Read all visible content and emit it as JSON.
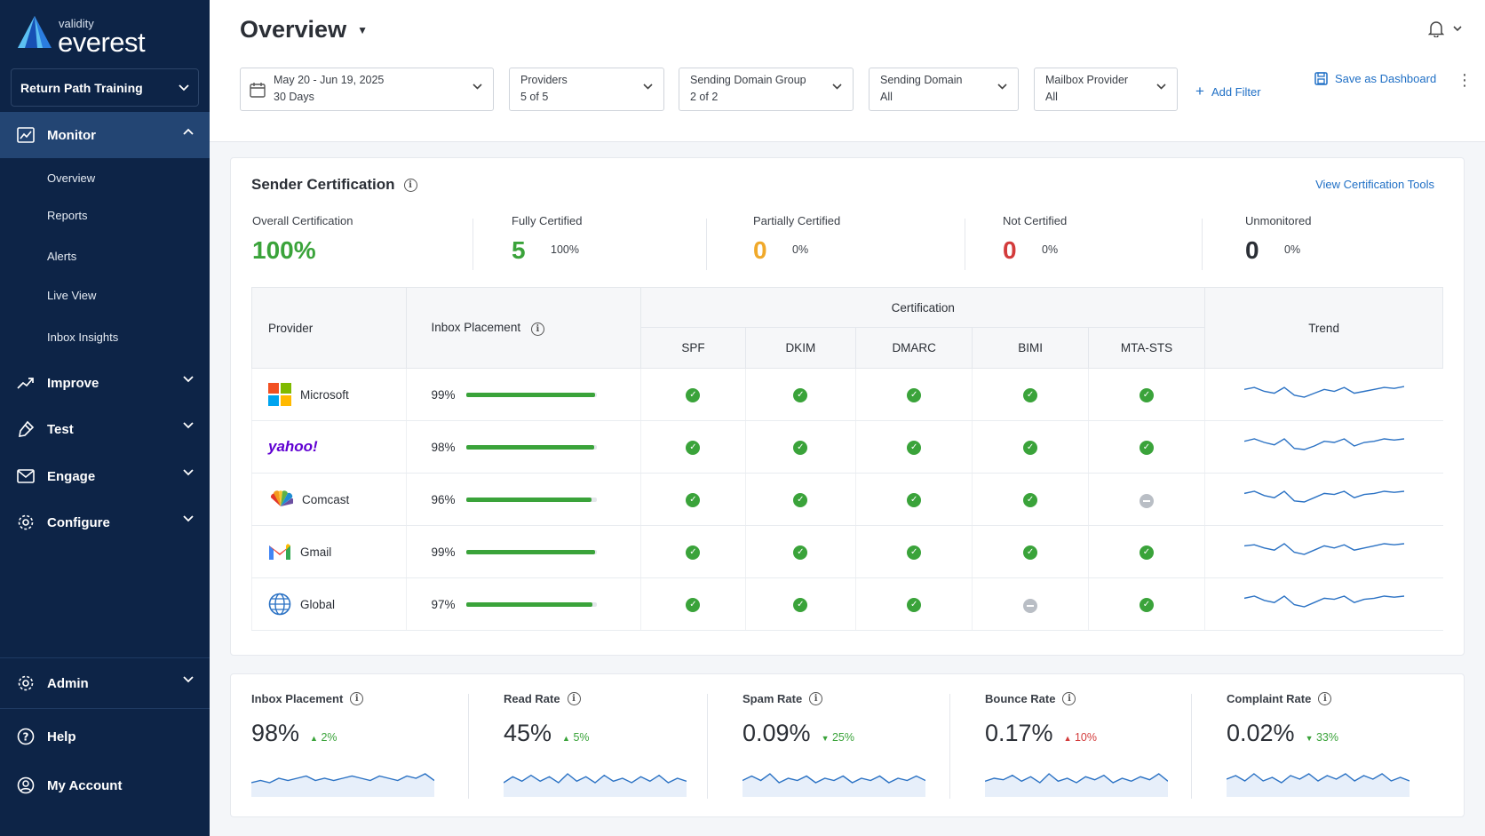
{
  "app": {
    "brand_small": "validity",
    "brand_big": "everest"
  },
  "sidebar": {
    "org": "Return Path Training",
    "monitor": {
      "label": "Monitor",
      "items": [
        "Overview",
        "Reports",
        "Alerts",
        "Live View",
        "Inbox Insights"
      ]
    },
    "groups": [
      "Improve",
      "Test",
      "Engage",
      "Configure"
    ],
    "bottom": [
      "Admin",
      "Help",
      "My Account"
    ]
  },
  "header": {
    "title": "Overview",
    "filters": [
      {
        "line1": "May 20 - Jun 19, 2025",
        "line2": "30 Days"
      },
      {
        "line1": "Providers",
        "line2": "5 of 5"
      },
      {
        "line1": "Sending Domain Group",
        "line2": "2 of 2"
      },
      {
        "line1": "Sending Domain",
        "line2": "All"
      },
      {
        "line1": "Mailbox Provider",
        "line2": "All"
      }
    ],
    "add_filter": "Add Filter",
    "save_dashboard": "Save as Dashboard"
  },
  "certification": {
    "title": "Sender Certification",
    "view_tools": "View Certification Tools",
    "stats": {
      "overall": {
        "label": "Overall Certification",
        "value": "100%"
      },
      "fully": {
        "label": "Fully Certified",
        "value": "5",
        "pct": "100%"
      },
      "partially": {
        "label": "Partially Certified",
        "value": "0",
        "pct": "0%"
      },
      "not": {
        "label": "Not Certified",
        "value": "0",
        "pct": "0%"
      },
      "unmonitored": {
        "label": "Unmonitored",
        "value": "0",
        "pct": "0%"
      }
    },
    "table": {
      "col_provider": "Provider",
      "col_inbox": "Inbox Placement",
      "col_certification": "Certification",
      "col_trend": "Trend",
      "cert_cols": [
        "SPF",
        "DKIM",
        "DMARC",
        "BIMI",
        "MTA-STS"
      ],
      "rows": [
        {
          "provider": "Microsoft",
          "inbox": "99%",
          "inbox_frac": 0.99,
          "cert": [
            1,
            1,
            1,
            1,
            1
          ]
        },
        {
          "provider": "yahoo!",
          "inbox": "98%",
          "inbox_frac": 0.98,
          "cert": [
            1,
            1,
            1,
            1,
            1
          ]
        },
        {
          "provider": "Comcast",
          "inbox": "96%",
          "inbox_frac": 0.96,
          "cert": [
            1,
            1,
            1,
            1,
            0
          ]
        },
        {
          "provider": "Gmail",
          "inbox": "99%",
          "inbox_frac": 0.99,
          "cert": [
            1,
            1,
            1,
            1,
            1
          ]
        },
        {
          "provider": "Global",
          "inbox": "97%",
          "inbox_frac": 0.97,
          "cert": [
            1,
            1,
            1,
            0,
            1
          ]
        }
      ]
    }
  },
  "metrics": [
    {
      "label": "Inbox Placement",
      "value": "98%",
      "delta": "2%",
      "direction": "up",
      "good": true
    },
    {
      "label": "Read Rate",
      "value": "45%",
      "delta": "5%",
      "direction": "up",
      "good": true
    },
    {
      "label": "Spam Rate",
      "value": "0.09%",
      "delta": "25%",
      "direction": "down",
      "good": true
    },
    {
      "label": "Bounce Rate",
      "value": "0.17%",
      "delta": "10%",
      "direction": "up",
      "good": false
    },
    {
      "label": "Complaint Rate",
      "value": "0.02%",
      "delta": "33%",
      "direction": "down",
      "good": true
    }
  ],
  "colors": {
    "sidebar": "#0d2447",
    "accent": "#1f6fc5",
    "good": "#3aa33a",
    "warn": "#f0a92a",
    "bad": "#d33b3b"
  }
}
